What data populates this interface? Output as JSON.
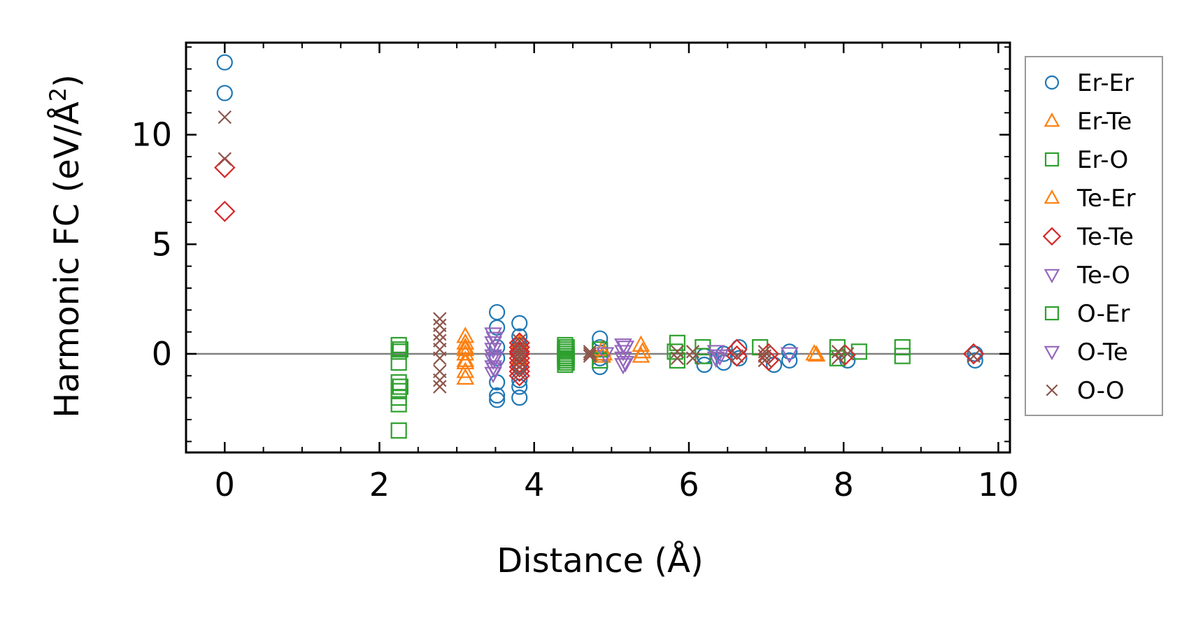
{
  "chart_data": {
    "type": "scatter",
    "xlabel": "Distance (Å)",
    "ylabel_main": "Harmonic FC (eV/Å",
    "ylabel_sup": "2",
    "ylabel_end": ")",
    "xlim": [
      -0.5,
      10.15
    ],
    "ylim": [
      -4.5,
      14.2
    ],
    "x_ticks": [
      0,
      2,
      4,
      6,
      8,
      10
    ],
    "x_tick_labels": [
      "0",
      "2",
      "4",
      "6",
      "8",
      "10"
    ],
    "y_ticks": [
      0,
      5,
      10
    ],
    "y_tick_labels": [
      "0",
      "5",
      "10"
    ],
    "x_minor_step": 0.5,
    "y_minor_step": 1,
    "zero_line": true,
    "grid": false,
    "legend_position": "right, outside plot",
    "series": [
      {
        "name": "Er-Er",
        "marker": "circle",
        "color": "#1f77b4",
        "x": [
          0,
          0,
          3.52,
          3.52,
          3.52,
          3.52,
          3.52,
          3.52,
          3.52,
          3.81,
          3.81,
          3.81,
          3.81,
          3.81,
          3.81,
          3.81,
          3.81,
          4.85,
          4.85,
          4.85,
          4.85,
          6.2,
          6.2,
          6.45,
          6.45,
          6.65,
          6.65,
          7.1,
          7.3,
          7.3,
          8.05,
          9.7,
          9.7
        ],
        "y": [
          13.3,
          11.9,
          1.9,
          1.2,
          0.3,
          -1.3,
          -1.9,
          -2.1,
          -0.2,
          1.4,
          0.8,
          0.4,
          0.0,
          -0.5,
          -1.2,
          -1.5,
          -2.0,
          0.7,
          0.3,
          -0.2,
          -0.6,
          -0.1,
          -0.5,
          0.0,
          -0.4,
          0.3,
          -0.2,
          -0.5,
          0.1,
          -0.3,
          -0.3,
          0.0,
          -0.3
        ]
      },
      {
        "name": "Er-Te",
        "marker": "triangle-up",
        "color": "#ff7f0e",
        "x": [
          3.11,
          3.11,
          3.11,
          3.11,
          3.11,
          3.11,
          3.11,
          3.81,
          3.81,
          4.88,
          4.88,
          5.38,
          5.38,
          7.65
        ],
        "y": [
          0.8,
          0.5,
          0.2,
          0.0,
          -0.4,
          -0.8,
          -1.1,
          0.5,
          -0.2,
          0.2,
          -0.1,
          0.4,
          -0.1,
          -0.05
        ]
      },
      {
        "name": "Er-O",
        "marker": "square",
        "color": "#2ca02c",
        "x": [
          2.25,
          2.25,
          2.25,
          2.25,
          2.25,
          2.25,
          2.25,
          2.25,
          4.4,
          4.4,
          4.4,
          4.4,
          4.4,
          4.4,
          4.4,
          4.4,
          4.4,
          4.85,
          4.85,
          5.85,
          5.85,
          6.18,
          6.18,
          6.92,
          7.92,
          7.92,
          8.2,
          8.76,
          8.76
        ],
        "y": [
          0.4,
          0.1,
          -0.4,
          -1.3,
          -1.7,
          -2.0,
          -2.3,
          -3.5,
          0.4,
          0.3,
          0.2,
          0.1,
          0.0,
          -0.1,
          -0.2,
          -0.3,
          -0.5,
          0.2,
          -0.3,
          0.5,
          -0.3,
          0.3,
          -0.1,
          0.3,
          0.3,
          -0.2,
          0.1,
          0.3,
          -0.1
        ]
      },
      {
        "name": "Te-Er",
        "marker": "triangle-up",
        "color": "#ff7f0e",
        "x": [
          3.11,
          3.11,
          4.9,
          5.4,
          7.62
        ],
        "y": [
          0.3,
          -0.3,
          0.0,
          0.1,
          0.0
        ]
      },
      {
        "name": "Te-Te",
        "marker": "diamond",
        "color": "#d62728",
        "x": [
          0,
          0,
          3.81,
          3.81,
          3.81,
          3.81,
          3.81,
          3.81,
          3.81,
          3.81,
          3.81,
          6.62,
          6.62,
          7.03,
          7.03,
          8.02,
          9.68
        ],
        "y": [
          8.5,
          6.5,
          0.5,
          0.3,
          0.1,
          0.0,
          -0.2,
          -0.4,
          -0.6,
          -0.8,
          -1.0,
          0.2,
          -0.1,
          0.0,
          -0.3,
          -0.05,
          0.0
        ]
      },
      {
        "name": "Te-O",
        "marker": "triangle-down",
        "color": "#9467bd",
        "x": [
          3.47,
          3.47,
          3.47,
          3.47,
          3.47,
          3.47,
          3.47,
          5.15,
          5.15,
          5.15,
          5.15,
          6.35,
          6.35,
          7.3
        ],
        "y": [
          0.9,
          0.5,
          0.2,
          -0.1,
          -0.3,
          -0.6,
          -0.9,
          0.4,
          0.1,
          -0.2,
          -0.5,
          0.1,
          -0.2,
          0.0
        ]
      },
      {
        "name": "O-Er",
        "marker": "square",
        "color": "#2ca02c",
        "x": [
          2.27,
          2.27,
          4.42,
          4.42,
          4.42,
          4.42,
          5.82
        ],
        "y": [
          -1.5,
          0.2,
          0.3,
          -0.2,
          -0.4,
          -0.1,
          0.1
        ]
      },
      {
        "name": "O-Te",
        "marker": "triangle-down",
        "color": "#9467bd",
        "x": [
          3.49,
          3.49,
          3.49,
          4.92,
          5.18,
          5.18,
          6.4
        ],
        "y": [
          0.7,
          -0.2,
          -0.7,
          0.0,
          0.3,
          -0.4,
          -0.1
        ]
      },
      {
        "name": "O-O",
        "marker": "x",
        "color": "#8c564b",
        "x": [
          0,
          0,
          2.78,
          2.78,
          2.78,
          2.78,
          2.78,
          2.78,
          2.78,
          2.78,
          2.78,
          3.81,
          3.81,
          3.81,
          3.81,
          3.81,
          3.81,
          3.81,
          4.72,
          4.72,
          4.72,
          5.85,
          5.85,
          6.05,
          6.05,
          6.62,
          6.98,
          6.98,
          6.98,
          7.93,
          7.93,
          8.05,
          9.68
        ],
        "y": [
          10.8,
          8.9,
          1.6,
          1.3,
          0.9,
          0.6,
          0.2,
          -0.2,
          -0.8,
          -1.2,
          -1.5,
          0.6,
          0.3,
          0.1,
          -0.1,
          -0.3,
          -0.6,
          -0.9,
          0.1,
          -0.1,
          0.0,
          0.1,
          -0.2,
          0.1,
          -0.2,
          -0.1,
          0.1,
          -0.1,
          -0.3,
          0.1,
          -0.2,
          0.0,
          -0.1
        ]
      }
    ]
  }
}
